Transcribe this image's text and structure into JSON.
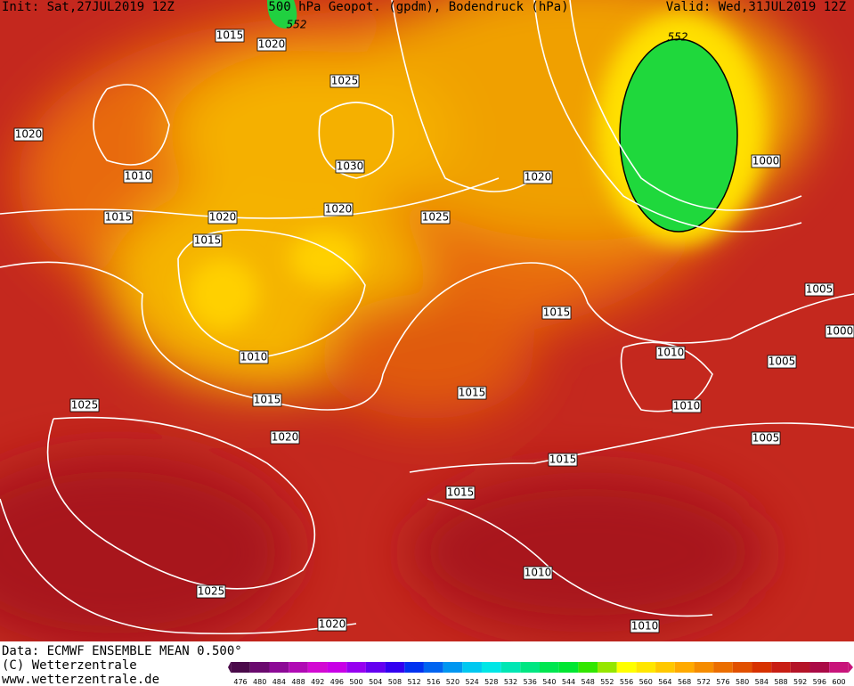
{
  "header": {
    "init": "Init: Sat,27JUL2019 12Z",
    "title": "500 hPa Geopot. (gpdm), Bodendruck (hPa)",
    "valid": "Valid: Wed,31JUL2019 12Z"
  },
  "isobar_labels": [
    1015,
    1020,
    552,
    1025,
    1020,
    1010,
    1030,
    1020,
    1025,
    1020,
    552,
    1000,
    1015,
    1020,
    1015,
    1005,
    1015,
    1000,
    1010,
    1010,
    1005,
    1015,
    1015,
    1010,
    1025,
    1020,
    1005,
    1015,
    1015,
    1010,
    1025,
    1020,
    1010
  ],
  "footer": {
    "data": "Data: ECMWF ENSEMBLE MEAN 0.500°",
    "copyright": "(C) Wetterzentrale",
    "url": "www.wetterzentrale.de"
  },
  "colorbar": {
    "labels": [
      476,
      480,
      484,
      488,
      492,
      496,
      500,
      504,
      508,
      512,
      516,
      520,
      524,
      528,
      532,
      536,
      540,
      544,
      548,
      552,
      556,
      560,
      564,
      568,
      572,
      576,
      580,
      584,
      588,
      592,
      596,
      600
    ],
    "colors": [
      "#4a0a4a",
      "#6a0a6e",
      "#8c0a96",
      "#b00ab4",
      "#d20ad2",
      "#c800e6",
      "#9600f0",
      "#6400f0",
      "#3200f0",
      "#0032f0",
      "#0064f0",
      "#0096f0",
      "#00c8f0",
      "#00e6e6",
      "#00e6b4",
      "#00e682",
      "#00e650",
      "#00e632",
      "#32e600",
      "#96e600",
      "#ffff00",
      "#ffe600",
      "#ffc800",
      "#ffaa00",
      "#f58c00",
      "#eb6e00",
      "#e15000",
      "#d73200",
      "#c81e14",
      "#b41428",
      "#aa0a46",
      "#c8147a"
    ]
  }
}
